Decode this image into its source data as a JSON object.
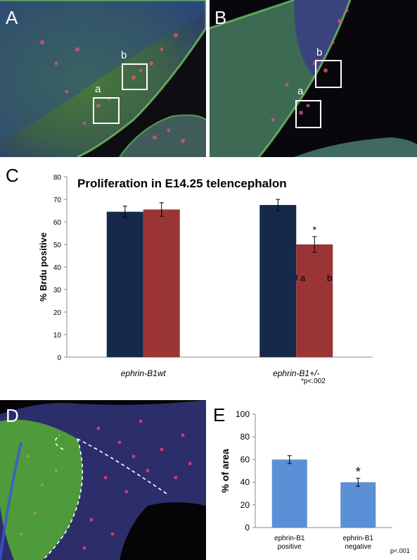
{
  "panels": {
    "A": {
      "letter": "A",
      "box_labels": [
        "a",
        "b"
      ]
    },
    "B": {
      "letter": "B",
      "box_labels": [
        "a",
        "b"
      ]
    },
    "C": {
      "letter": "C"
    },
    "D": {
      "letter": "D"
    },
    "E": {
      "letter": "E"
    }
  },
  "colors": {
    "series_a": "#17294a",
    "series_b": "#9b3535",
    "panel_e_bar": "#5b8fd6"
  },
  "chart_data": [
    {
      "id": "C",
      "type": "bar",
      "title": "Proliferation in E14.25 telencephalon",
      "xlabel": "",
      "ylabel": "% Brdu positive",
      "ylim": [
        0,
        80
      ],
      "yticks": [
        "0",
        "10",
        "20",
        "30",
        "40",
        "50",
        "60",
        "70",
        "80"
      ],
      "categories": [
        "ephrin-B1wt",
        "ephrin-B1+/-"
      ],
      "series": [
        {
          "name": "a",
          "values": [
            64.5,
            67.5
          ],
          "errors": [
            2.5,
            2.5
          ]
        },
        {
          "name": "b",
          "values": [
            65.5,
            50.0
          ],
          "errors": [
            3.0,
            3.5
          ]
        }
      ],
      "annotations": [
        "*"
      ],
      "footnote": "*p<.002",
      "legend": "right"
    },
    {
      "id": "E",
      "type": "bar",
      "title": "",
      "xlabel": "",
      "ylabel": "% of area",
      "ylim": [
        0,
        100
      ],
      "yticks": [
        "0",
        "20",
        "40",
        "60",
        "80",
        "100"
      ],
      "categories": [
        [
          "ephrin-B1",
          "positive"
        ],
        [
          "ephrin-B1",
          "negative"
        ]
      ],
      "values": [
        60,
        40
      ],
      "errors": [
        3.5,
        3.5
      ],
      "annotations": [
        "*"
      ],
      "footnote": "p<.001"
    }
  ]
}
